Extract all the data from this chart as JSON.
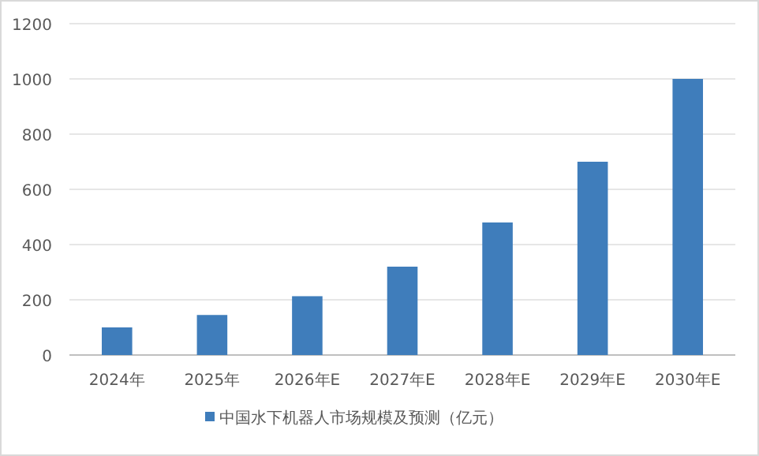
{
  "chart_data": {
    "type": "bar",
    "categories": [
      "2024年",
      "2025年",
      "2026年E",
      "2027年E",
      "2028年E",
      "2029年E",
      "2030年E"
    ],
    "series": [
      {
        "name": "中国水下机器人市场规模及预测（亿元）",
        "color": "#3f7dbb",
        "values": [
          100,
          145,
          213,
          320,
          480,
          700,
          1000
        ]
      }
    ],
    "ylim": [
      0,
      1200
    ],
    "yticks": [
      0,
      200,
      400,
      600,
      800,
      1000,
      1200
    ],
    "grid": "y",
    "legend": "bottom"
  }
}
